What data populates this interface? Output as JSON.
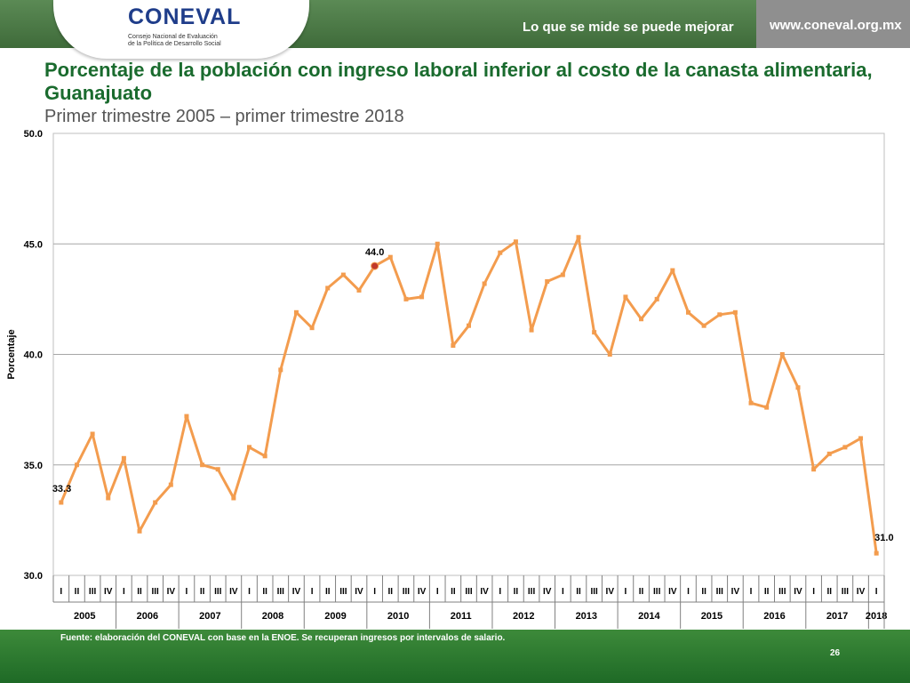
{
  "header": {
    "logo_text": "CONEVAL",
    "logo_subtitle_line1": "Consejo Nacional de Evaluación",
    "logo_subtitle_line2": "de la Política de Desarrollo Social",
    "tagline": "Lo que se mide se puede mejorar",
    "url": "www.coneval.org.mx"
  },
  "footer": {
    "source": "Fuente: elaboración del CONEVAL con base en la ENOE. Se recuperan ingresos por intervalos de salario.",
    "page_number": "26"
  },
  "colors": {
    "header_green": "#4a7a45",
    "title_green": "#1a6b2e",
    "series_orange": "#f39c4e",
    "highlight_red": "#c0392b"
  },
  "chart_data": {
    "type": "line",
    "title": "Porcentaje de la población con ingreso laboral inferior al costo de la canasta alimentaria, Guanajuato",
    "subtitle": "Primer trimestre 2005 – primer trimestre 2018",
    "ylabel": "Porcentaje",
    "xlabel": "",
    "ylim": [
      30.0,
      50.0
    ],
    "yticks": [
      "30.0",
      "35.0",
      "40.0",
      "45.0",
      "50.0"
    ],
    "grid": true,
    "quarter_labels": [
      "I",
      "II",
      "III",
      "IV"
    ],
    "years": [
      "2005",
      "2006",
      "2007",
      "2008",
      "2009",
      "2010",
      "2011",
      "2012",
      "2013",
      "2014",
      "2015",
      "2016",
      "2017",
      "2018"
    ],
    "values": [
      33.3,
      35.0,
      36.4,
      33.5,
      35.3,
      32.0,
      33.3,
      34.1,
      37.2,
      35.0,
      34.8,
      33.5,
      35.8,
      35.4,
      39.3,
      41.9,
      41.2,
      43.0,
      43.6,
      42.9,
      44.0,
      44.4,
      42.5,
      42.6,
      45.0,
      40.4,
      41.3,
      43.2,
      44.6,
      45.1,
      41.1,
      43.3,
      43.6,
      45.3,
      41.0,
      40.0,
      42.6,
      41.6,
      42.5,
      43.8,
      41.9,
      41.3,
      41.8,
      41.9,
      37.8,
      37.6,
      40.0,
      38.5,
      34.8,
      35.5,
      35.8,
      36.2,
      31.0
    ],
    "data_labels": [
      {
        "index": 0,
        "text": "33.3"
      },
      {
        "index": 20,
        "text": "44.0"
      },
      {
        "index": 52,
        "text": "31.0"
      }
    ],
    "highlight_index": 20
  }
}
